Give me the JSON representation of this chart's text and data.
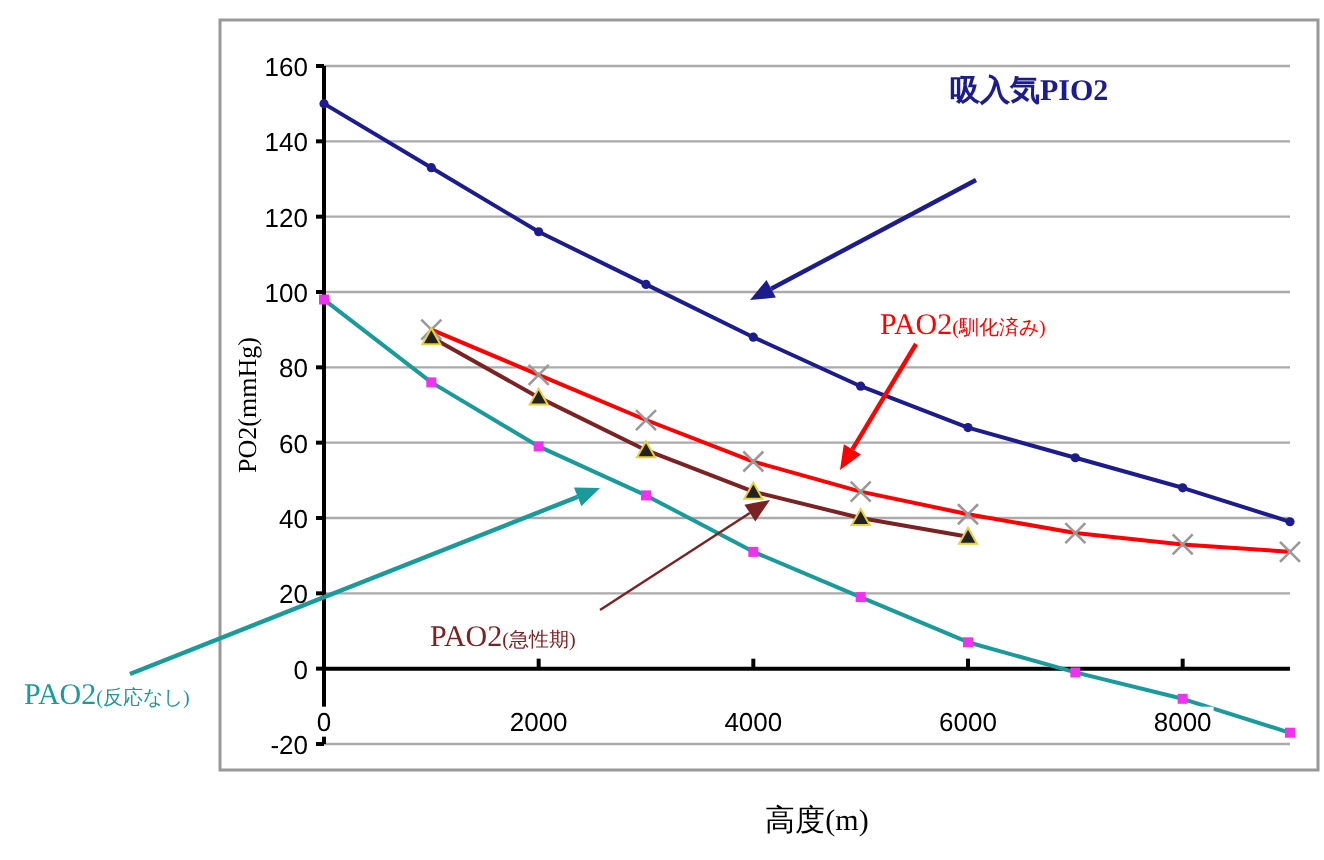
{
  "chart_data": {
    "type": "line",
    "xlabel": "高度(m)",
    "ylabel": "PO2(mmHg)",
    "x": [
      0,
      1000,
      2000,
      3000,
      4000,
      5000,
      6000,
      7000,
      8000,
      9000
    ],
    "xlim": [
      0,
      9000
    ],
    "xticks": [
      0,
      2000,
      4000,
      6000,
      8000
    ],
    "ylim": [
      -20,
      160
    ],
    "yticks": [
      -20,
      0,
      20,
      40,
      60,
      80,
      100,
      120,
      140,
      160
    ],
    "grid": "y",
    "series": [
      {
        "name": "吸入気PIO2",
        "color": "#1c1c8c",
        "marker": "circle",
        "values": [
          150,
          133,
          116,
          102,
          88,
          75,
          64,
          56,
          48,
          39
        ]
      },
      {
        "name": "PAO2(馴化済み)",
        "color": "#ff0000",
        "marker": "cross",
        "values": [
          null,
          90,
          78,
          66,
          55,
          47,
          41,
          36,
          33,
          31
        ]
      },
      {
        "name": "PAO2(急性期)",
        "color": "#7b2222",
        "marker": "triangle",
        "values": [
          null,
          88,
          72,
          58,
          47,
          40,
          35,
          null,
          null,
          null
        ]
      },
      {
        "name": "PAO2(反応なし)",
        "color": "#1a9a9a",
        "marker": "square",
        "values": [
          98,
          76,
          59,
          46,
          31,
          19,
          7,
          -1,
          -8,
          -17
        ]
      }
    ]
  }
}
